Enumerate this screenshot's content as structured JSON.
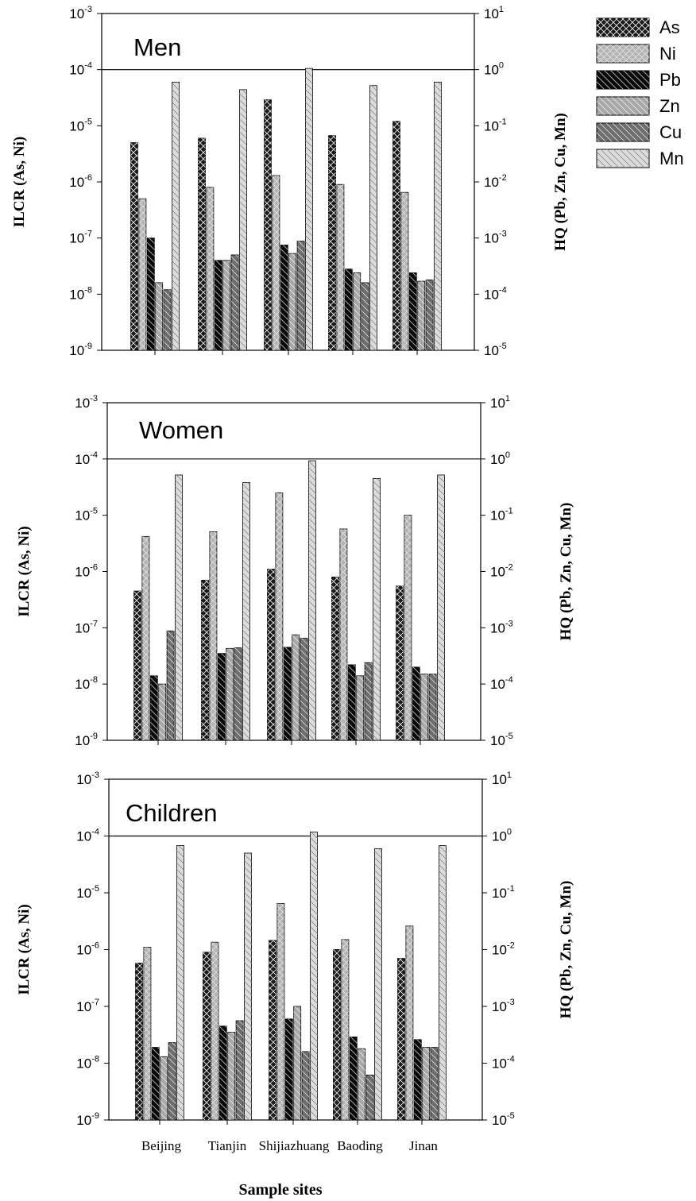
{
  "chart_data": [
    {
      "type": "bar",
      "title": "Men",
      "categories": [
        "Beijing",
        "Tianjin",
        "Shijiazhuang",
        "Baoding",
        "Jinan"
      ],
      "ylabel_left": "ILCR (As, Ni)",
      "ylabel_right": "HQ (Pb, Zn, Cu, Mn)",
      "yscale": "log",
      "ylim_left": [
        1e-09,
        0.001
      ],
      "ylim_right": [
        1e-05,
        10
      ],
      "yticks_left": [
        {
          "m": "10",
          "e": "-9"
        },
        {
          "m": "10",
          "e": "-8"
        },
        {
          "m": "10",
          "e": "-7"
        },
        {
          "m": "10",
          "e": "-6"
        },
        {
          "m": "10",
          "e": "-5"
        },
        {
          "m": "10",
          "e": "-4"
        },
        {
          "m": "10",
          "e": "-3"
        }
      ],
      "yticks_right": [
        {
          "m": "10",
          "e": "-5"
        },
        {
          "m": "10",
          "e": "-4"
        },
        {
          "m": "10",
          "e": "-3"
        },
        {
          "m": "10",
          "e": "-2"
        },
        {
          "m": "10",
          "e": "-1"
        },
        {
          "m": "10",
          "e": "0"
        },
        {
          "m": "10",
          "e": "1"
        }
      ],
      "reference_line": {
        "axis": "left",
        "value": 0.0001
      },
      "series": [
        {
          "name": "As",
          "axis": "left",
          "values": [
            5e-06,
            6e-06,
            2.9e-05,
            6.7e-06,
            1.2e-05
          ]
        },
        {
          "name": "Ni",
          "axis": "left",
          "values": [
            5e-07,
            8e-07,
            1.3e-06,
            9e-07,
            6.5e-07
          ]
        },
        {
          "name": "Pb",
          "axis": "right",
          "values": [
            0.001,
            0.0004,
            0.00075,
            0.00028,
            0.00024
          ]
        },
        {
          "name": "Zn",
          "axis": "right",
          "values": [
            0.00016,
            0.0004,
            0.00053,
            0.00024,
            0.00017
          ]
        },
        {
          "name": "Cu",
          "axis": "right",
          "values": [
            0.00012,
            0.0005,
            0.00088,
            0.00016,
            0.00018
          ]
        },
        {
          "name": "Mn",
          "axis": "right",
          "values": [
            0.6,
            0.44,
            1.05,
            0.52,
            0.6
          ]
        }
      ]
    },
    {
      "type": "bar",
      "title": "Women",
      "categories": [
        "Beijing",
        "Tianjin",
        "Shijiazhuang",
        "Baoding",
        "Jinan"
      ],
      "ylabel_left": "ILCR (As, Ni)",
      "ylabel_right": "HQ (Pb, Zn, Cu, Mn)",
      "yscale": "log",
      "ylim_left": [
        1e-09,
        0.001
      ],
      "ylim_right": [
        1e-05,
        10
      ],
      "yticks_left": [
        {
          "m": "10",
          "e": "-9"
        },
        {
          "m": "10",
          "e": "-8"
        },
        {
          "m": "10",
          "e": "-7"
        },
        {
          "m": "10",
          "e": "-6"
        },
        {
          "m": "10",
          "e": "-5"
        },
        {
          "m": "10",
          "e": "-4"
        },
        {
          "m": "10",
          "e": "-3"
        }
      ],
      "yticks_right": [
        {
          "m": "10",
          "e": "-5"
        },
        {
          "m": "10",
          "e": "-4"
        },
        {
          "m": "10",
          "e": "-3"
        },
        {
          "m": "10",
          "e": "-2"
        },
        {
          "m": "10",
          "e": "-1"
        },
        {
          "m": "10",
          "e": "0"
        },
        {
          "m": "10",
          "e": "1"
        }
      ],
      "reference_line": {
        "axis": "left",
        "value": 0.0001
      },
      "series": [
        {
          "name": "As",
          "axis": "left",
          "values": [
            4.5e-07,
            7e-07,
            1.1e-06,
            8e-07,
            5.5e-07
          ]
        },
        {
          "name": "Ni",
          "axis": "left",
          "values": [
            4.2e-06,
            5.1e-06,
            2.5e-05,
            5.7e-06,
            1e-05
          ]
        },
        {
          "name": "Pb",
          "axis": "right",
          "values": [
            0.00014,
            0.00035,
            0.00045,
            0.00022,
            0.0002
          ]
        },
        {
          "name": "Zn",
          "axis": "right",
          "values": [
            0.0001,
            0.00043,
            0.00075,
            0.00014,
            0.00015
          ]
        },
        {
          "name": "Cu",
          "axis": "right",
          "values": [
            0.00088,
            0.00044,
            0.00065,
            0.00024,
            0.00015
          ]
        },
        {
          "name": "Mn",
          "axis": "right",
          "values": [
            0.52,
            0.38,
            0.93,
            0.45,
            0.52
          ]
        }
      ]
    },
    {
      "type": "bar",
      "title": "Children",
      "categories": [
        "Beijing",
        "Tianjin",
        "Shijiazhuang",
        "Baoding",
        "Jinan"
      ],
      "xlabel": "Sample sites",
      "ylabel_left": "ILCR (As, Ni)",
      "ylabel_right": "HQ (Pb, Zn, Cu, Mn)",
      "yscale": "log",
      "ylim_left": [
        1e-09,
        0.001
      ],
      "ylim_right": [
        1e-05,
        10
      ],
      "yticks_left": [
        {
          "m": "10",
          "e": "-9"
        },
        {
          "m": "10",
          "e": "-8"
        },
        {
          "m": "10",
          "e": "-7"
        },
        {
          "m": "10",
          "e": "-6"
        },
        {
          "m": "10",
          "e": "-5"
        },
        {
          "m": "10",
          "e": "-4"
        },
        {
          "m": "10",
          "e": "-3"
        }
      ],
      "yticks_right": [
        {
          "m": "10",
          "e": "-5"
        },
        {
          "m": "10",
          "e": "-4"
        },
        {
          "m": "10",
          "e": "-3"
        },
        {
          "m": "10",
          "e": "-2"
        },
        {
          "m": "10",
          "e": "-1"
        },
        {
          "m": "10",
          "e": "0"
        },
        {
          "m": "10",
          "e": "1"
        }
      ],
      "reference_line": {
        "axis": "left",
        "value": 0.0001
      },
      "series": [
        {
          "name": "As",
          "axis": "left",
          "values": [
            5.8e-07,
            9e-07,
            1.45e-06,
            1e-06,
            7e-07
          ]
        },
        {
          "name": "Ni",
          "axis": "left",
          "values": [
            1.1e-06,
            1.35e-06,
            6.5e-06,
            1.5e-06,
            2.6e-06
          ]
        },
        {
          "name": "Pb",
          "axis": "right",
          "values": [
            0.00019,
            0.00045,
            0.0006,
            0.00029,
            0.00026
          ]
        },
        {
          "name": "Zn",
          "axis": "right",
          "values": [
            0.00013,
            0.00035,
            0.001,
            0.00018,
            0.00019
          ]
        },
        {
          "name": "Cu",
          "axis": "right",
          "values": [
            0.00023,
            0.00056,
            0.00016,
            6.2e-05,
            0.00019
          ]
        },
        {
          "name": "Mn",
          "axis": "right",
          "values": [
            0.68,
            0.5,
            1.18,
            0.6,
            0.68
          ]
        }
      ]
    }
  ],
  "legend": {
    "placement": "top-right",
    "items": [
      {
        "name": "As",
        "fill": "#1a1a1a",
        "hatch": "cross"
      },
      {
        "name": "Ni",
        "fill": "#b4b4b4",
        "hatch": "cross"
      },
      {
        "name": "Pb",
        "fill": "#0a0a0a",
        "hatch": "diag"
      },
      {
        "name": "Zn",
        "fill": "#a8a8a8",
        "hatch": "diag"
      },
      {
        "name": "Cu",
        "fill": "#6e6e6e",
        "hatch": "diag"
      },
      {
        "name": "Mn",
        "fill": "#dcdcdc",
        "hatch": "diag"
      }
    ]
  },
  "xlabel": "Sample sites"
}
